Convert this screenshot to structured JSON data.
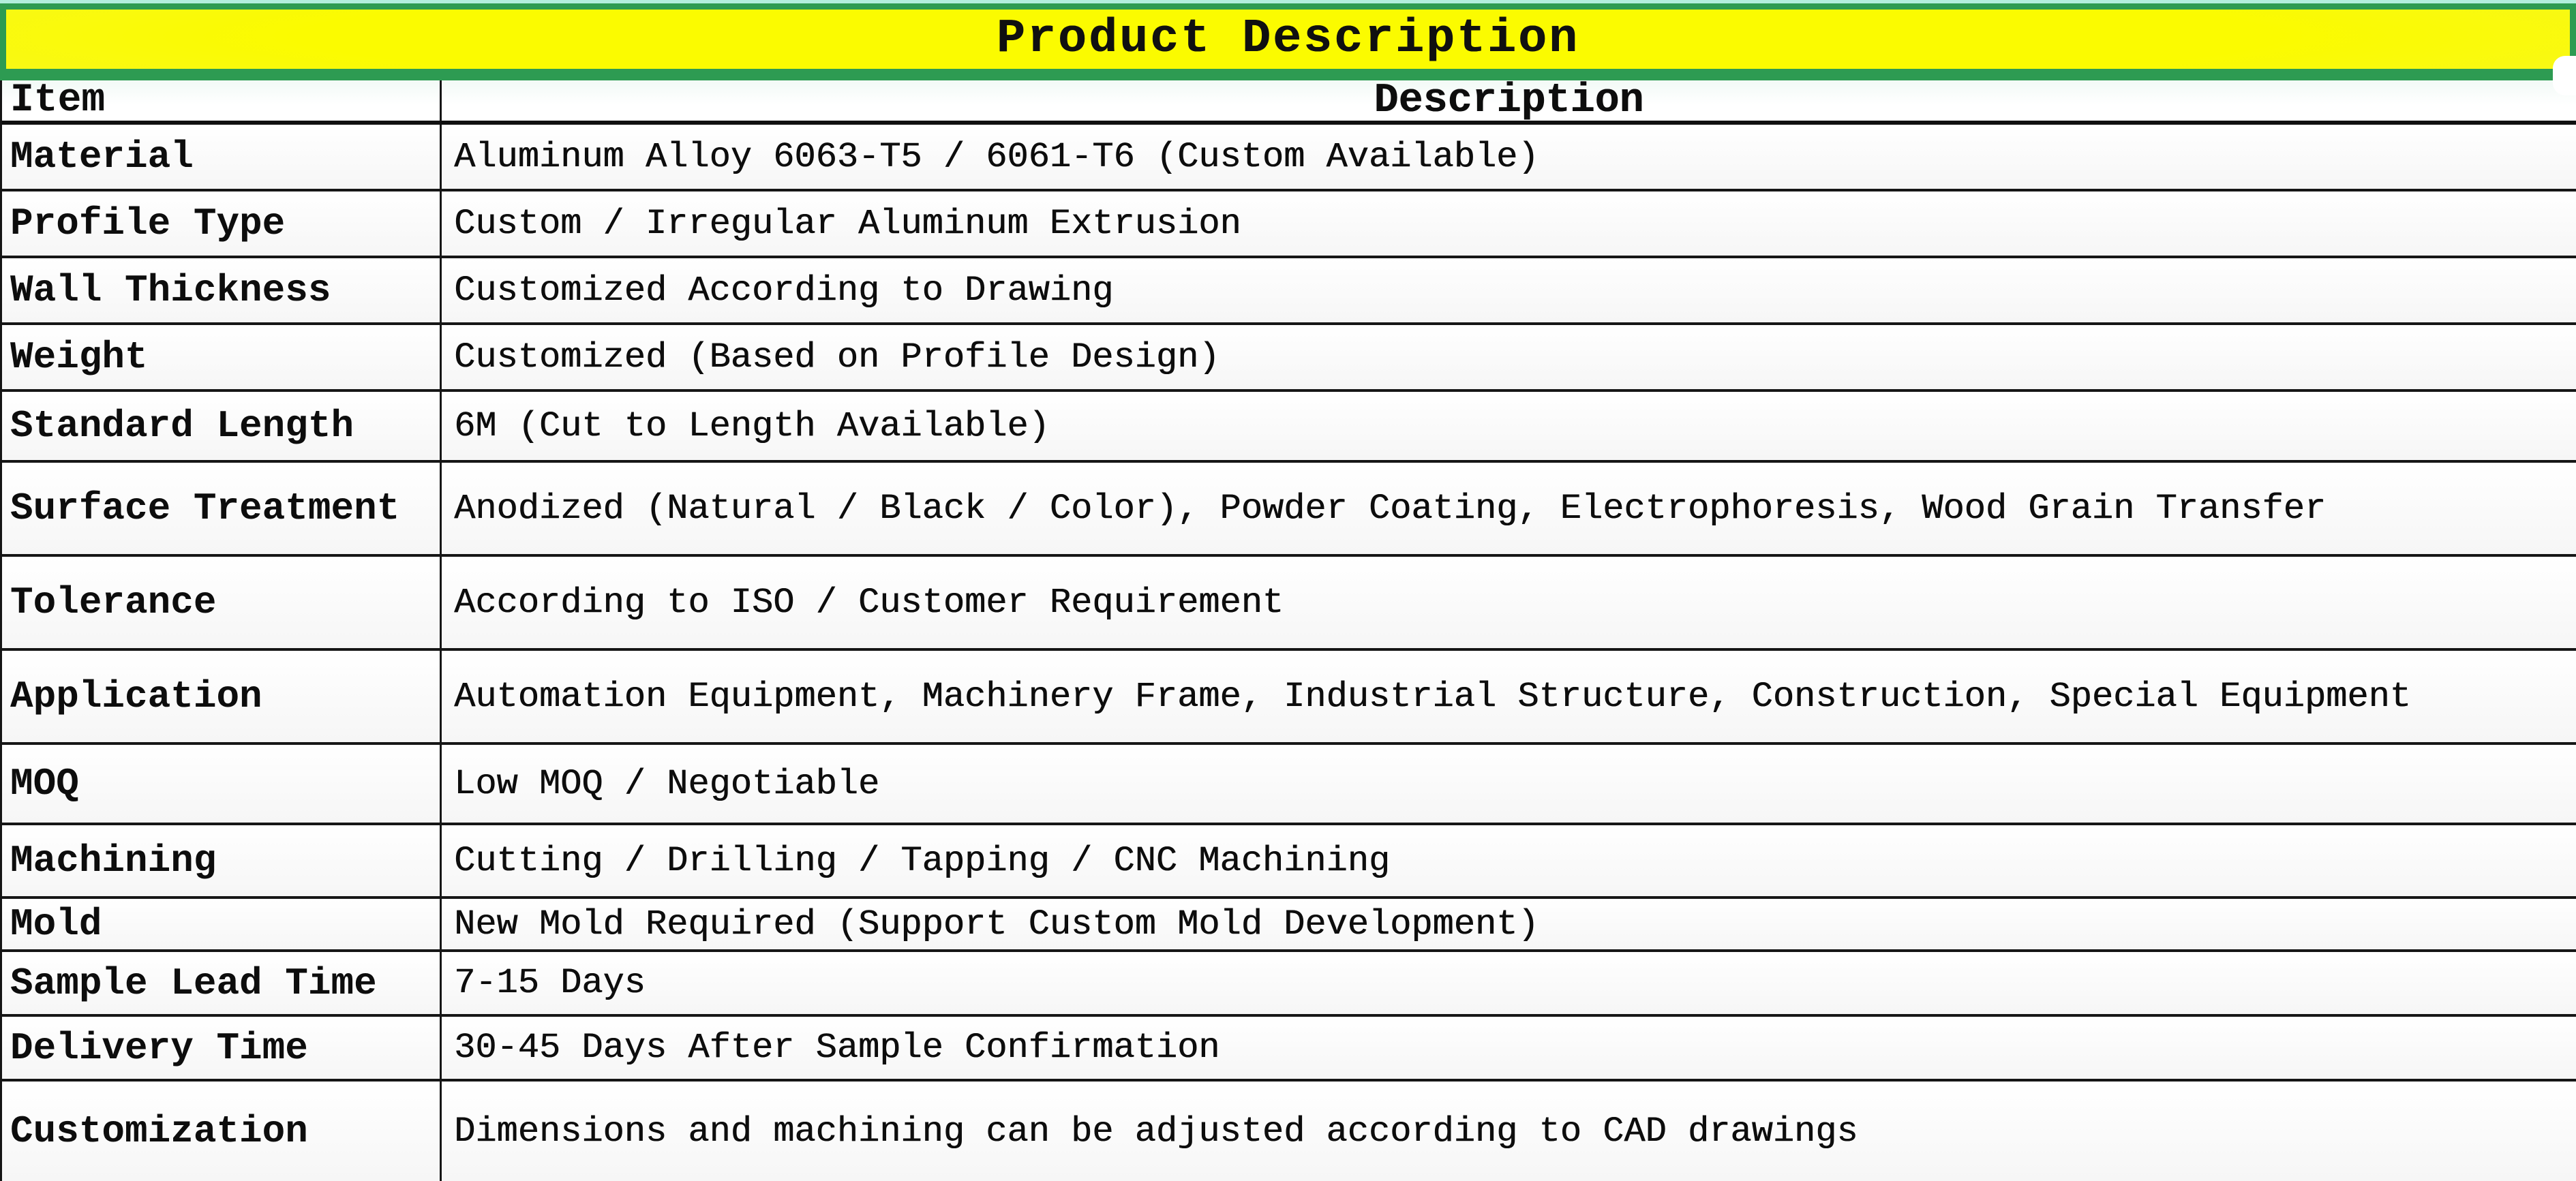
{
  "title": "Product Description",
  "table": {
    "headers": {
      "item": "Item",
      "description": "Description"
    },
    "rows": [
      {
        "item": "Material",
        "description": "Aluminum Alloy 6063-T5 / 6061-T6 (Custom Available)"
      },
      {
        "item": "Profile Type",
        "description": "Custom / Irregular Aluminum Extrusion"
      },
      {
        "item": "Wall Thickness",
        "description": "Customized According to Drawing"
      },
      {
        "item": "Weight",
        "description": "Customized (Based on Profile Design)"
      },
      {
        "item": "Standard Length",
        "description": "6M (Cut to Length Available)"
      },
      {
        "item": "Surface Treatment",
        "description": "Anodized (Natural / Black / Color), Powder Coating, Electrophoresis, Wood Grain Transfer"
      },
      {
        "item": "Tolerance",
        "description": "According to ISO / Customer Requirement"
      },
      {
        "item": "Application",
        "description": "Automation Equipment, Machinery Frame, Industrial Structure, Construction, Special Equipment"
      },
      {
        "item": "MOQ",
        "description": "Low MOQ / Negotiable"
      },
      {
        "item": "Machining",
        "description": "Cutting / Drilling / Tapping / CNC Machining"
      },
      {
        "item": "Mold",
        "description": "New Mold Required (Support Custom Mold Development)"
      },
      {
        "item": "Sample Lead Time",
        "description": "7-15 Days"
      },
      {
        "item": "Delivery Time",
        "description": "30-45 Days After Sample Confirmation"
      },
      {
        "item": "Customization",
        "description": "Dimensions and machining can be adjusted according to CAD drawings"
      }
    ]
  },
  "colors": {
    "banner_fill": "#fbfb00",
    "banner_border": "#2d9b52",
    "top_strip": "#b2eedd",
    "grid_line": "#161616",
    "text": "#0d0d0d"
  }
}
